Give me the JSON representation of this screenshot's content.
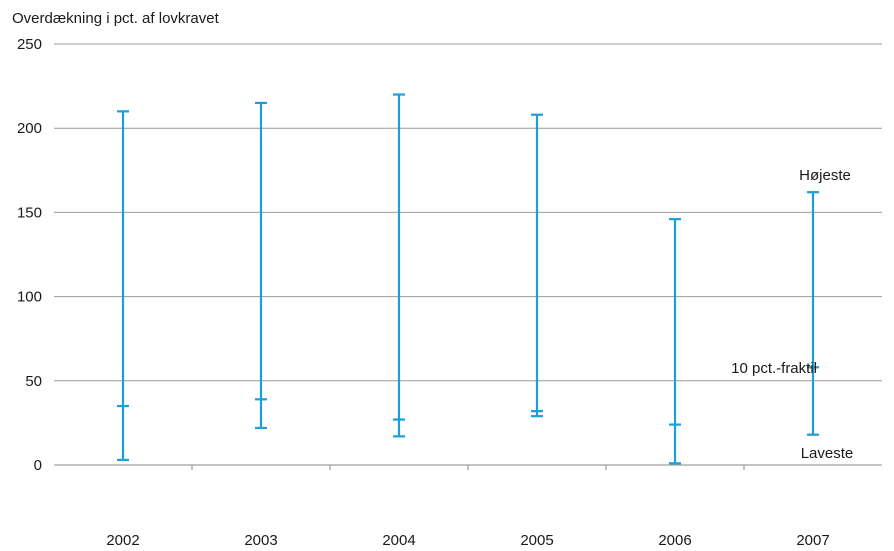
{
  "chart_data": {
    "type": "range",
    "ylabel": "Overdækning i pct. af lovkravet",
    "ylim": [
      0,
      250
    ],
    "yticks": [
      0,
      50,
      100,
      150,
      200,
      250
    ],
    "categories": [
      "2002",
      "2003",
      "2004",
      "2005",
      "2006",
      "2007"
    ],
    "series": [
      {
        "name": "Højeste",
        "values": [
          210,
          215,
          220,
          208,
          146,
          162
        ]
      },
      {
        "name": "10 pct.-fraktil",
        "values": [
          35,
          39,
          27,
          32,
          24,
          58
        ]
      },
      {
        "name": "Laveste",
        "values": [
          3,
          22,
          17,
          29,
          1,
          18
        ]
      }
    ],
    "annotations": {
      "highest": "Højeste",
      "fractile": "10 pct.-fraktil",
      "lowest": "Laveste"
    },
    "grid": true,
    "colors": {
      "range": "#1a9fd6",
      "grid": "#9a9a9a",
      "axis": "#8a8a8a"
    }
  }
}
